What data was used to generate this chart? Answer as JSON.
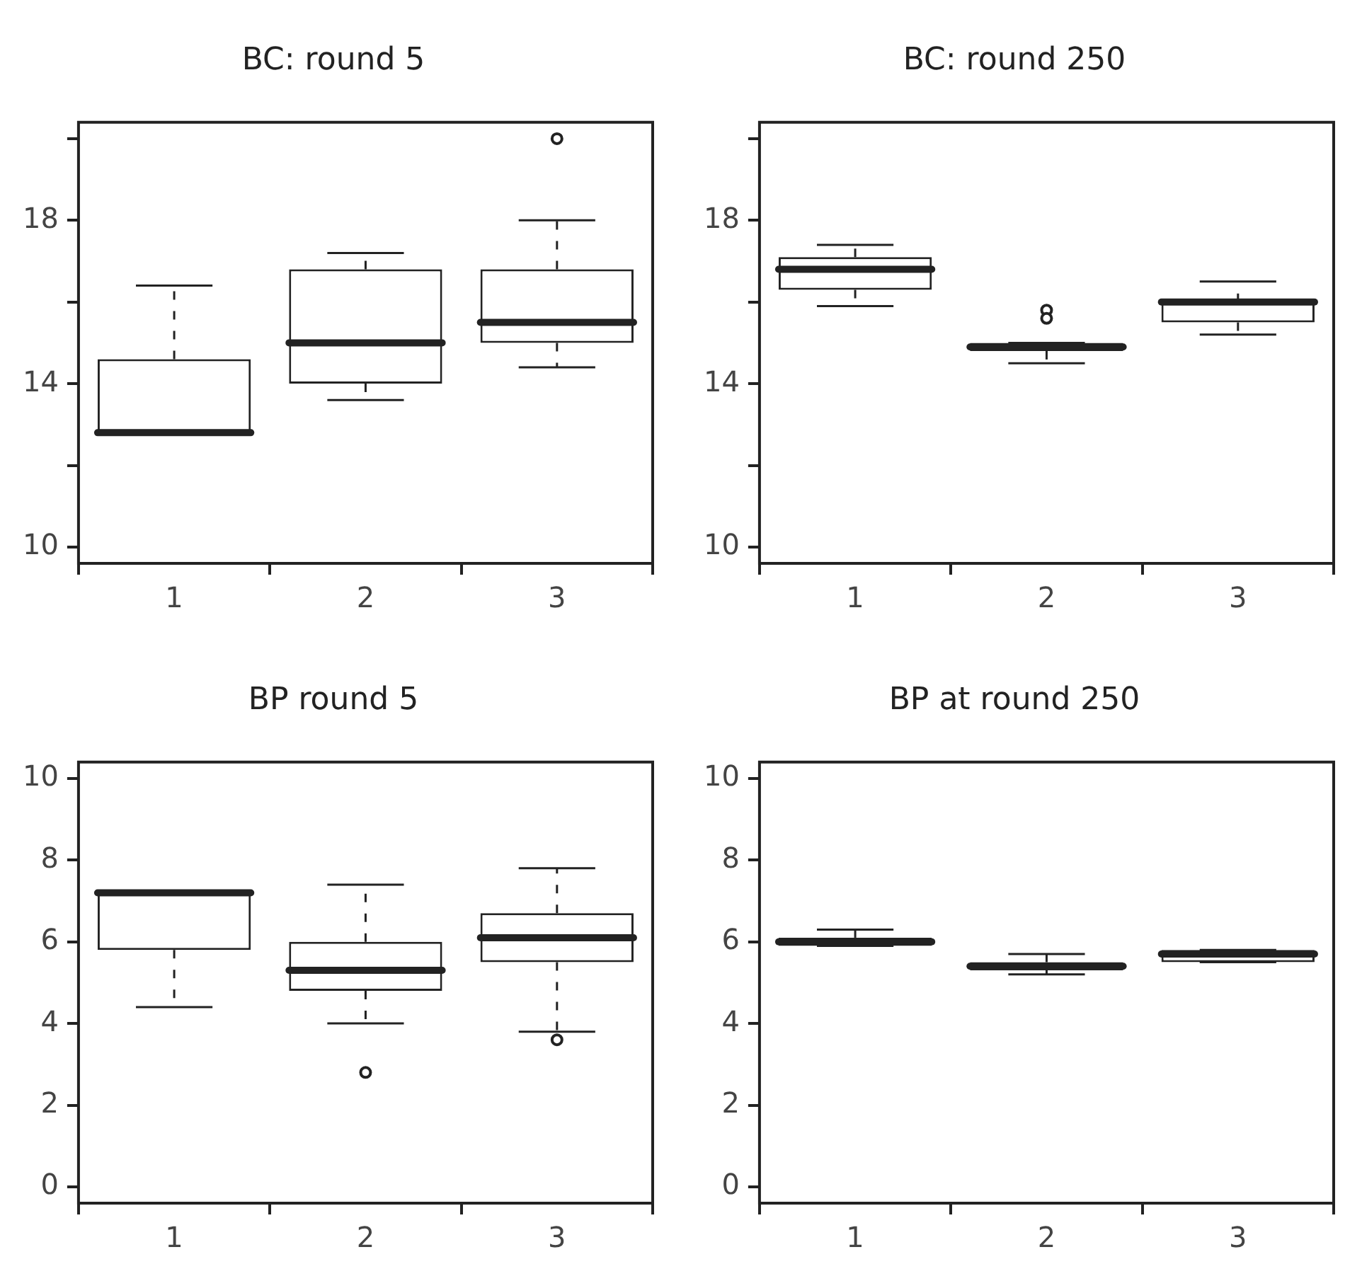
{
  "chart_data": [
    {
      "type": "box",
      "title": "BC: round 5",
      "categories": [
        "1",
        "2",
        "3"
      ],
      "ylim": [
        9.6,
        20.4
      ],
      "yticks": [
        10,
        {
          "value": 12,
          "label": null
        },
        14,
        {
          "value": 16,
          "label": null
        },
        18,
        {
          "value": 20,
          "label": null
        }
      ],
      "boxes": [
        {
          "low": 12.8,
          "q1": 12.8,
          "median": 12.8,
          "q3": 14.6,
          "high": 16.4
        },
        {
          "low": 13.6,
          "q1": 14.0,
          "median": 15.0,
          "q3": 16.8,
          "high": 17.2
        },
        {
          "low": 14.4,
          "q1": 15.0,
          "median": 15.5,
          "q3": 16.8,
          "high": 18.0,
          "outliers": [
            20.0
          ]
        }
      ]
    },
    {
      "type": "box",
      "title": "BC: round 250",
      "categories": [
        "1",
        "2",
        "3"
      ],
      "ylim": [
        9.6,
        20.4
      ],
      "yticks": [
        10,
        {
          "value": 12,
          "label": null
        },
        14,
        {
          "value": 16,
          "label": null
        },
        18,
        {
          "value": 20,
          "label": null
        }
      ],
      "boxes": [
        {
          "low": 15.9,
          "q1": 16.3,
          "median": 16.8,
          "q3": 17.1,
          "high": 17.4
        },
        {
          "low": 14.5,
          "q1": 14.8,
          "median": 14.9,
          "q3": 15.0,
          "high": 15.0,
          "outliers": [
            15.6,
            15.8
          ]
        },
        {
          "low": 15.2,
          "q1": 15.5,
          "median": 16.0,
          "q3": 16.0,
          "high": 16.5
        }
      ]
    },
    {
      "type": "box",
      "title": "BP round 5",
      "categories": [
        "1",
        "2",
        "3"
      ],
      "ylim": [
        -0.4,
        10.4
      ],
      "yticks": [
        0,
        2,
        4,
        6,
        8,
        10
      ],
      "boxes": [
        {
          "low": 4.4,
          "q1": 5.8,
          "median": 7.2,
          "q3": 7.2,
          "high": 7.2
        },
        {
          "low": 4.0,
          "q1": 4.8,
          "median": 5.3,
          "q3": 6.0,
          "high": 7.4,
          "outliers": [
            2.8
          ]
        },
        {
          "low": 3.8,
          "q1": 5.5,
          "median": 6.1,
          "q3": 6.7,
          "high": 7.8,
          "outliers": [
            3.6
          ]
        }
      ]
    },
    {
      "type": "box",
      "title": "BP at round 250",
      "categories": [
        "1",
        "2",
        "3"
      ],
      "ylim": [
        -0.4,
        10.4
      ],
      "yticks": [
        0,
        2,
        4,
        6,
        8,
        10
      ],
      "boxes": [
        {
          "low": 5.9,
          "q1": 5.9,
          "median": 6.0,
          "q3": 6.1,
          "high": 6.3
        },
        {
          "low": 5.2,
          "q1": 5.3,
          "median": 5.4,
          "q3": 5.5,
          "high": 5.7
        },
        {
          "low": 5.5,
          "q1": 5.5,
          "median": 5.7,
          "q3": 5.8,
          "high": 5.8
        }
      ]
    }
  ]
}
